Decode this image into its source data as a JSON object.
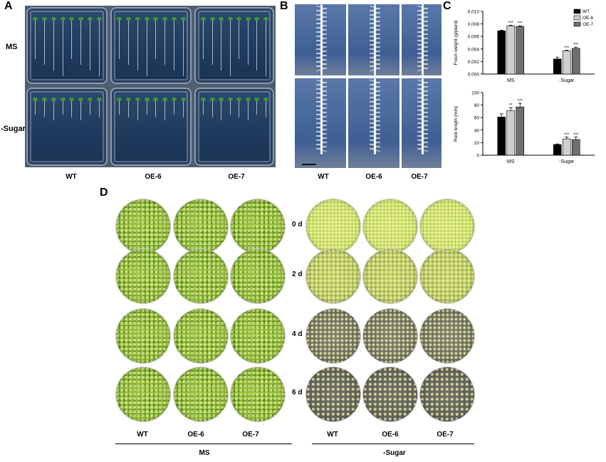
{
  "panels": {
    "A": {
      "letter": "A",
      "rows": [
        "MS",
        "-Sugar"
      ],
      "columns": [
        "WT",
        "OE-6",
        "OE-7"
      ]
    },
    "B": {
      "letter": "B",
      "columns": [
        "WT",
        "OE-6",
        "OE-7"
      ]
    },
    "C": {
      "letter": "C"
    },
    "D": {
      "letter": "D",
      "days": [
        "0 d",
        "2 d",
        "4 d",
        "6 d"
      ],
      "columns_left": [
        "WT",
        "OE-6",
        "OE-7"
      ],
      "columns_right": [
        "WT",
        "OE-6",
        "OE-7"
      ],
      "group_left": "MS",
      "group_right": "-Sugar"
    }
  },
  "chart_data": [
    {
      "type": "bar",
      "categories": [
        "MS",
        "-Sugar"
      ],
      "series": [
        {
          "name": "WT",
          "values": [
            0.0069,
            0.0024
          ],
          "errors": [
            0.0001,
            0.0003
          ],
          "color": "#000000",
          "sig": [
            "",
            ""
          ]
        },
        {
          "name": "OE-6",
          "values": [
            0.0077,
            0.0037
          ],
          "errors": [
            0.0001,
            0.0001
          ],
          "color": "#cfcfcf",
          "sig": [
            "***",
            "***"
          ]
        },
        {
          "name": "OE-7",
          "values": [
            0.0076,
            0.0041
          ],
          "errors": [
            0.0001,
            0.0002
          ],
          "color": "#6f6f6f",
          "sig": [
            "***",
            "***"
          ]
        }
      ],
      "ylabel": "Fresh weight (g/plant)",
      "ylim": [
        0,
        0.01
      ],
      "yticks": [
        "0.000",
        "0.002",
        "0.004",
        "0.006",
        "0.008",
        "0.010"
      ],
      "ytick_values": [
        0,
        0.002,
        0.004,
        0.006,
        0.008,
        0.01
      ],
      "legend": [
        "WT",
        "OE-6",
        "OE-7"
      ],
      "legend_position": "top-right"
    },
    {
      "type": "bar",
      "categories": [
        "MS",
        "-Sugar"
      ],
      "series": [
        {
          "name": "WT",
          "values": [
            61,
            17
          ],
          "errors": [
            5,
            1
          ],
          "color": "#000000",
          "sig": [
            "",
            ""
          ]
        },
        {
          "name": "OE-6",
          "values": [
            71,
            26
          ],
          "errors": [
            5,
            3
          ],
          "color": "#cfcfcf",
          "sig": [
            "**",
            "***"
          ]
        },
        {
          "name": "OE-7",
          "values": [
            77,
            25
          ],
          "errors": [
            6,
            4
          ],
          "color": "#6f6f6f",
          "sig": [
            "***",
            "***"
          ]
        }
      ],
      "ylabel": "Root length (mm)",
      "ylim": [
        0,
        100
      ],
      "yticks": [
        "0",
        "20",
        "40",
        "60",
        "80",
        "100"
      ],
      "ytick_values": [
        0,
        20,
        40,
        60,
        80,
        100
      ]
    }
  ]
}
